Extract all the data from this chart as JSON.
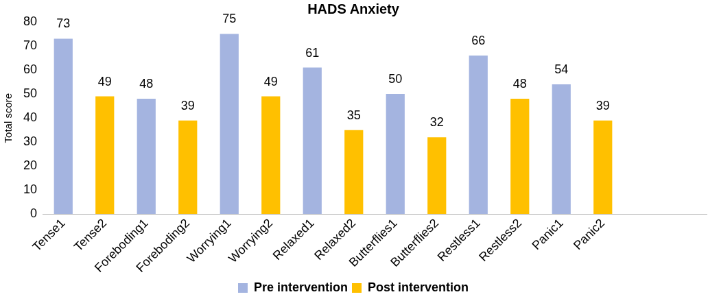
{
  "chart_data": {
    "type": "bar",
    "title": "HADS Anxiety",
    "ylabel": "Total score",
    "categories": [
      "Tense1",
      "Tense2",
      "Foreboding1",
      "Foreboding2",
      "Worrying1",
      "Worrying2",
      "Relaxed1",
      "Relaxed2",
      "Butterflies1",
      "Butterflies2",
      "Restless1",
      "Restless2",
      "Panic1",
      "Panic2",
      null,
      null
    ],
    "series": [
      {
        "name": "Pre intervention",
        "color": "#a4b4e0",
        "values": [
          73,
          null,
          48,
          null,
          75,
          null,
          61,
          null,
          50,
          null,
          66,
          null,
          54,
          null,
          null,
          null
        ]
      },
      {
        "name": "Post intervention",
        "color": "#ffc000",
        "values": [
          null,
          49,
          null,
          39,
          null,
          49,
          null,
          35,
          null,
          32,
          null,
          48,
          null,
          39,
          null,
          null
        ]
      }
    ],
    "ylim": [
      0,
      80
    ],
    "yticks": [
      0,
      10,
      20,
      30,
      40,
      50,
      60,
      70,
      80
    ],
    "grid": false,
    "legend": "bottom",
    "data_labels": true
  }
}
